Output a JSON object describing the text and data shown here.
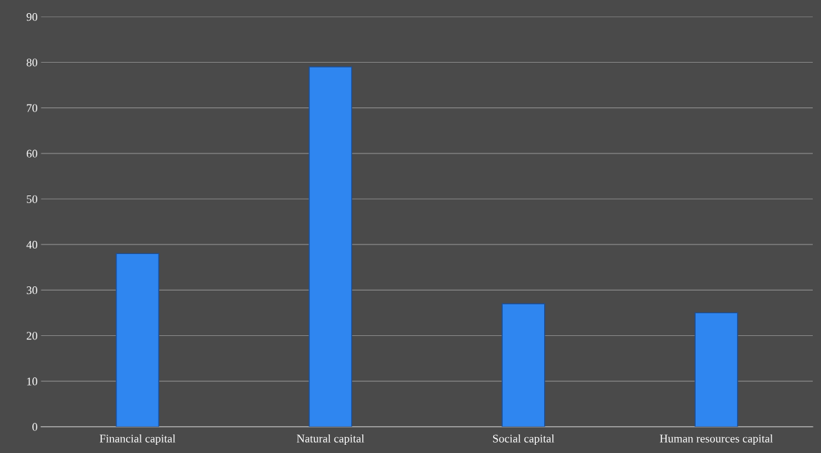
{
  "chart_data": {
    "type": "bar",
    "categories": [
      "Financial capital",
      "Natural capital",
      "Social capital",
      "Human resources capital"
    ],
    "values": [
      38,
      79,
      27,
      25
    ],
    "color": "#2f86f0",
    "ylim": [
      0,
      90
    ],
    "yticks": [
      0,
      10,
      20,
      30,
      40,
      50,
      60,
      70,
      80,
      90
    ],
    "grid": "y",
    "legend": false
  }
}
